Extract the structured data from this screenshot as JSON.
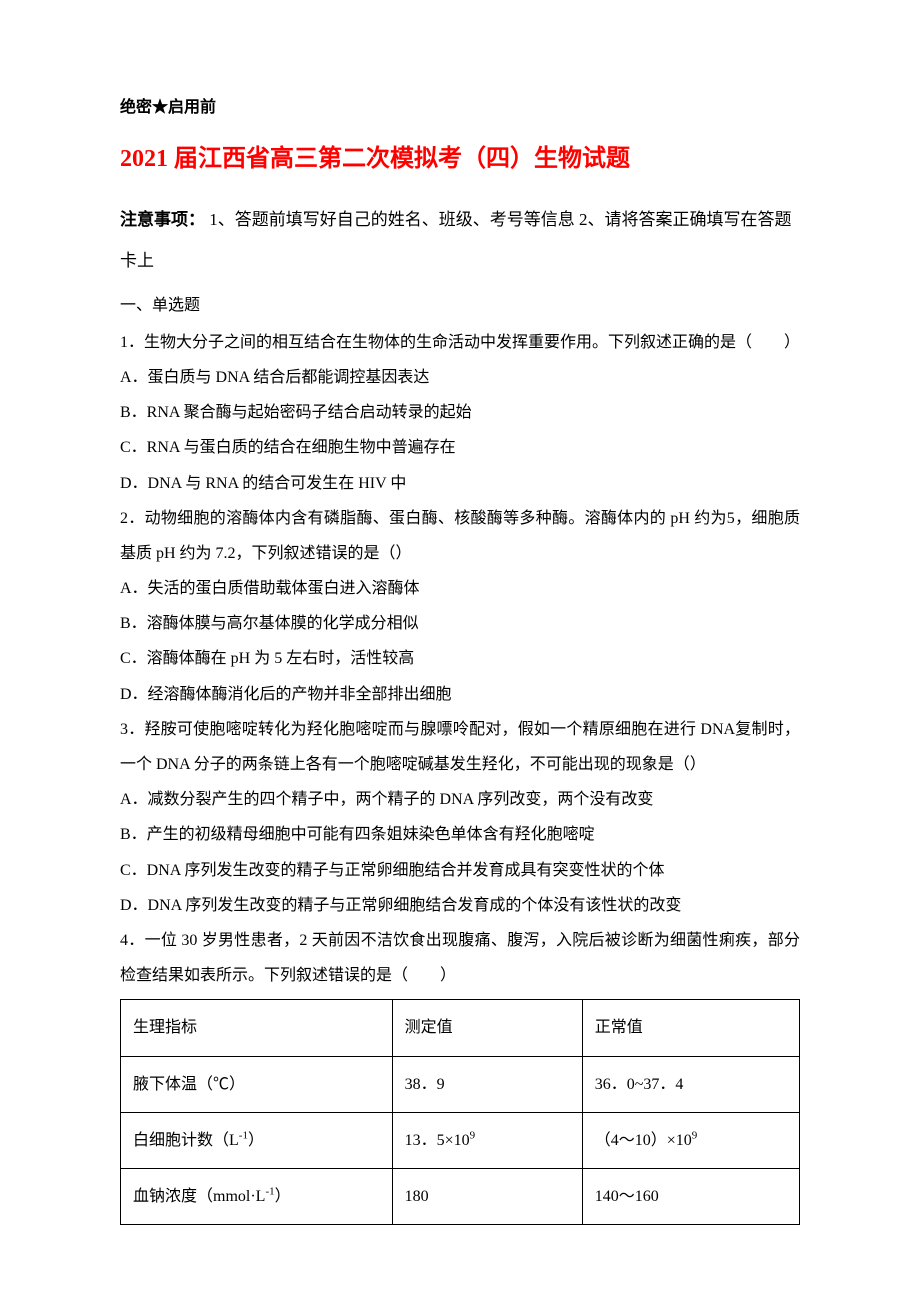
{
  "classification": "绝密★启用前",
  "title": "2021 届江西省高三第二次模拟考（四）生物试题",
  "notice_label": "注意事项：",
  "notice_text": "1、答题前填写好自己的姓名、班级、考号等信息  2、请将答案正确填写在答题卡上",
  "section_heading": "一、单选题",
  "q1": {
    "stem": "1．生物大分子之间的相互结合在生物体的生命活动中发挥重要作用。下列叙述正确的是（　　）",
    "a": "A．蛋白质与 DNA 结合后都能调控基因表达",
    "b": "B．RNA 聚合酶与起始密码子结合启动转录的起始",
    "c": "C．RNA 与蛋白质的结合在细胞生物中普遍存在",
    "d": "D．DNA 与 RNA 的结合可发生在 HIV 中"
  },
  "q2": {
    "stem": "2．动物细胞的溶酶体内含有磷脂酶、蛋白酶、核酸酶等多种酶。溶酶体内的 pH 约为5，细胞质基质 pH 约为 7.2，下列叙述错误的是（）",
    "a": "A．失活的蛋白质借助载体蛋白进入溶酶体",
    "b": "B．溶酶体膜与高尔基体膜的化学成分相似",
    "c": "C．溶酶体酶在 pH 为 5 左右时，活性较高",
    "d": "D．经溶酶体酶消化后的产物并非全部排出细胞"
  },
  "q3": {
    "stem": "3．羟胺可使胞嘧啶转化为羟化胞嘧啶而与腺嘌呤配对，假如一个精原细胞在进行 DNA复制时，一个 DNA 分子的两条链上各有一个胞嘧啶碱基发生羟化，不可能出现的现象是（）",
    "a": "A．减数分裂产生的四个精子中，两个精子的 DNA 序列改变，两个没有改变",
    "b": "B．产生的初级精母细胞中可能有四条姐妹染色单体含有羟化胞嘧啶",
    "c": "C．DNA 序列发生改变的精子与正常卵细胞结合并发育成具有突变性状的个体",
    "d": "D．DNA 序列发生改变的精子与正常卵细胞结合发育成的个体没有该性状的改变"
  },
  "q4": {
    "stem": "4．一位 30 岁男性患者，2 天前因不洁饮食出现腹痛、腹泻，入院后被诊断为细菌性痢疾，部分检查结果如表所示。下列叙述错误的是（　　）"
  },
  "table": {
    "header": {
      "c1": "生理指标",
      "c2": "测定值",
      "c3": "正常值"
    },
    "r1": {
      "c1": "腋下体温（℃）",
      "c2": "38．9",
      "c3": "36．0~37．4"
    },
    "r2": {
      "c1_pre": "白细胞计数（L",
      "c1_sup": "-1",
      "c1_post": "）",
      "c2_pre": "13．5×10",
      "c2_sup": "9",
      "c3_pre": "（4～10）×10",
      "c3_sup": "9"
    },
    "r3": {
      "c1_pre": "血钠浓度（mmol·L",
      "c1_sup": "-1",
      "c1_post": "）",
      "c2": "180",
      "c3": "140～160"
    }
  },
  "colors": {
    "title": "#ff0000",
    "text": "#000000",
    "background": "#ffffff",
    "border": "#000000"
  }
}
